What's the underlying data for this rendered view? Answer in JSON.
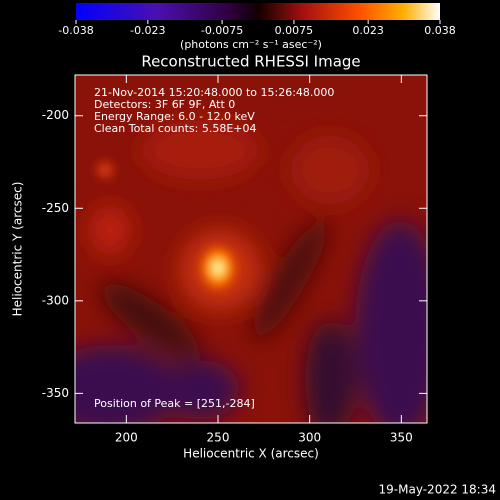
{
  "chart_data": {
    "type": "image",
    "title": "Reconstructed RHESSI Image",
    "xlabel": "Heliocentric X (arcsec)",
    "ylabel": "Heliocentric Y (arcsec)",
    "xlim": [
      172,
      364
    ],
    "xticks": [
      200,
      250,
      300,
      350
    ],
    "ylim": [
      -366,
      -178
    ],
    "yticks": [
      -200,
      -250,
      -300,
      -350
    ],
    "colorbar": {
      "lim": [
        -0.038,
        0.038
      ],
      "ticks": [
        -0.038,
        -0.023,
        -0.0075,
        0.0075,
        0.023,
        0.038
      ],
      "label": "(photons cm⁻² s⁻¹ asec⁻²)"
    },
    "annotations": [
      "21-Nov-2014 15:20:48.000 to 15:26:48.000",
      "Detectors: 3F 6F 9F, Att 0",
      "Energy Range: 6.0 - 12.0 keV",
      "Clean    Total counts: 5.58E+04"
    ],
    "peak_label": "Position of Peak = [251,-284]",
    "timestamp": "19-May-2022 18:34"
  }
}
